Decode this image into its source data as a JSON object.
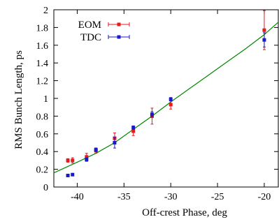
{
  "chart_data": {
    "type": "scatter",
    "title": "",
    "xlabel": "Off-crest Phase, deg",
    "ylabel": "RMS Bunch Length, ps",
    "xlim": [
      -42.5,
      -18.5
    ],
    "ylim": [
      0,
      2
    ],
    "x_ticks": [
      -40,
      -35,
      -30,
      -25,
      -20
    ],
    "y_ticks": [
      0,
      0.2,
      0.4,
      0.6,
      0.8,
      1,
      1.2,
      1.4,
      1.6,
      1.8,
      2
    ],
    "x_tick_labels": [
      "-40",
      "-35",
      "-30",
      "-25",
      "-20"
    ],
    "y_tick_labels": [
      "0",
      "0.2",
      "0.4",
      "0.6",
      "0.8",
      "1",
      "1.2",
      "1.4",
      "1.6",
      "1.8",
      "2"
    ],
    "grid": false,
    "legend_position": "top-left",
    "series": [
      {
        "name": "EOM",
        "color": "#e41a1c",
        "marker": "square",
        "points": [
          {
            "x": -41,
            "y": 0.3,
            "err": 0.02
          },
          {
            "x": -40.5,
            "y": 0.3,
            "err": 0.03
          },
          {
            "x": -39,
            "y": 0.34,
            "err": 0.04
          },
          {
            "x": -38,
            "y": 0.41,
            "err": 0.03
          },
          {
            "x": -36,
            "y": 0.55,
            "err": 0.06
          },
          {
            "x": -34,
            "y": 0.63,
            "err": 0.05
          },
          {
            "x": -32,
            "y": 0.8,
            "err": 0.09
          },
          {
            "x": -30,
            "y": 0.93,
            "err": 0.05
          },
          {
            "x": -20,
            "y": 1.77,
            "err": 0.22
          }
        ]
      },
      {
        "name": "TDC",
        "color": "#1a1acc",
        "marker": "square",
        "points": [
          {
            "x": -41,
            "y": 0.13,
            "err": 0.01
          },
          {
            "x": -40.5,
            "y": 0.14,
            "err": 0.01
          },
          {
            "x": -39,
            "y": 0.31,
            "err": 0.02
          },
          {
            "x": -38,
            "y": 0.42,
            "err": 0.02
          },
          {
            "x": -36,
            "y": 0.5,
            "err": 0.06
          },
          {
            "x": -34,
            "y": 0.67,
            "err": 0.02
          },
          {
            "x": -32,
            "y": 0.82,
            "err": 0.03
          },
          {
            "x": -30,
            "y": 0.99,
            "err": 0.02
          },
          {
            "x": -20,
            "y": 1.66,
            "err": 0.08
          }
        ]
      }
    ],
    "fit_curve": {
      "color": "#008800",
      "points": [
        {
          "x": -42.5,
          "y": 0.16
        },
        {
          "x": -40,
          "y": 0.28
        },
        {
          "x": -38,
          "y": 0.38
        },
        {
          "x": -36,
          "y": 0.5
        },
        {
          "x": -34,
          "y": 0.65
        },
        {
          "x": -32,
          "y": 0.8
        },
        {
          "x": -30,
          "y": 0.96
        },
        {
          "x": -28,
          "y": 1.11
        },
        {
          "x": -26,
          "y": 1.26
        },
        {
          "x": -24,
          "y": 1.41
        },
        {
          "x": -22,
          "y": 1.56
        },
        {
          "x": -20,
          "y": 1.72
        },
        {
          "x": -18.5,
          "y": 1.86
        }
      ]
    }
  }
}
